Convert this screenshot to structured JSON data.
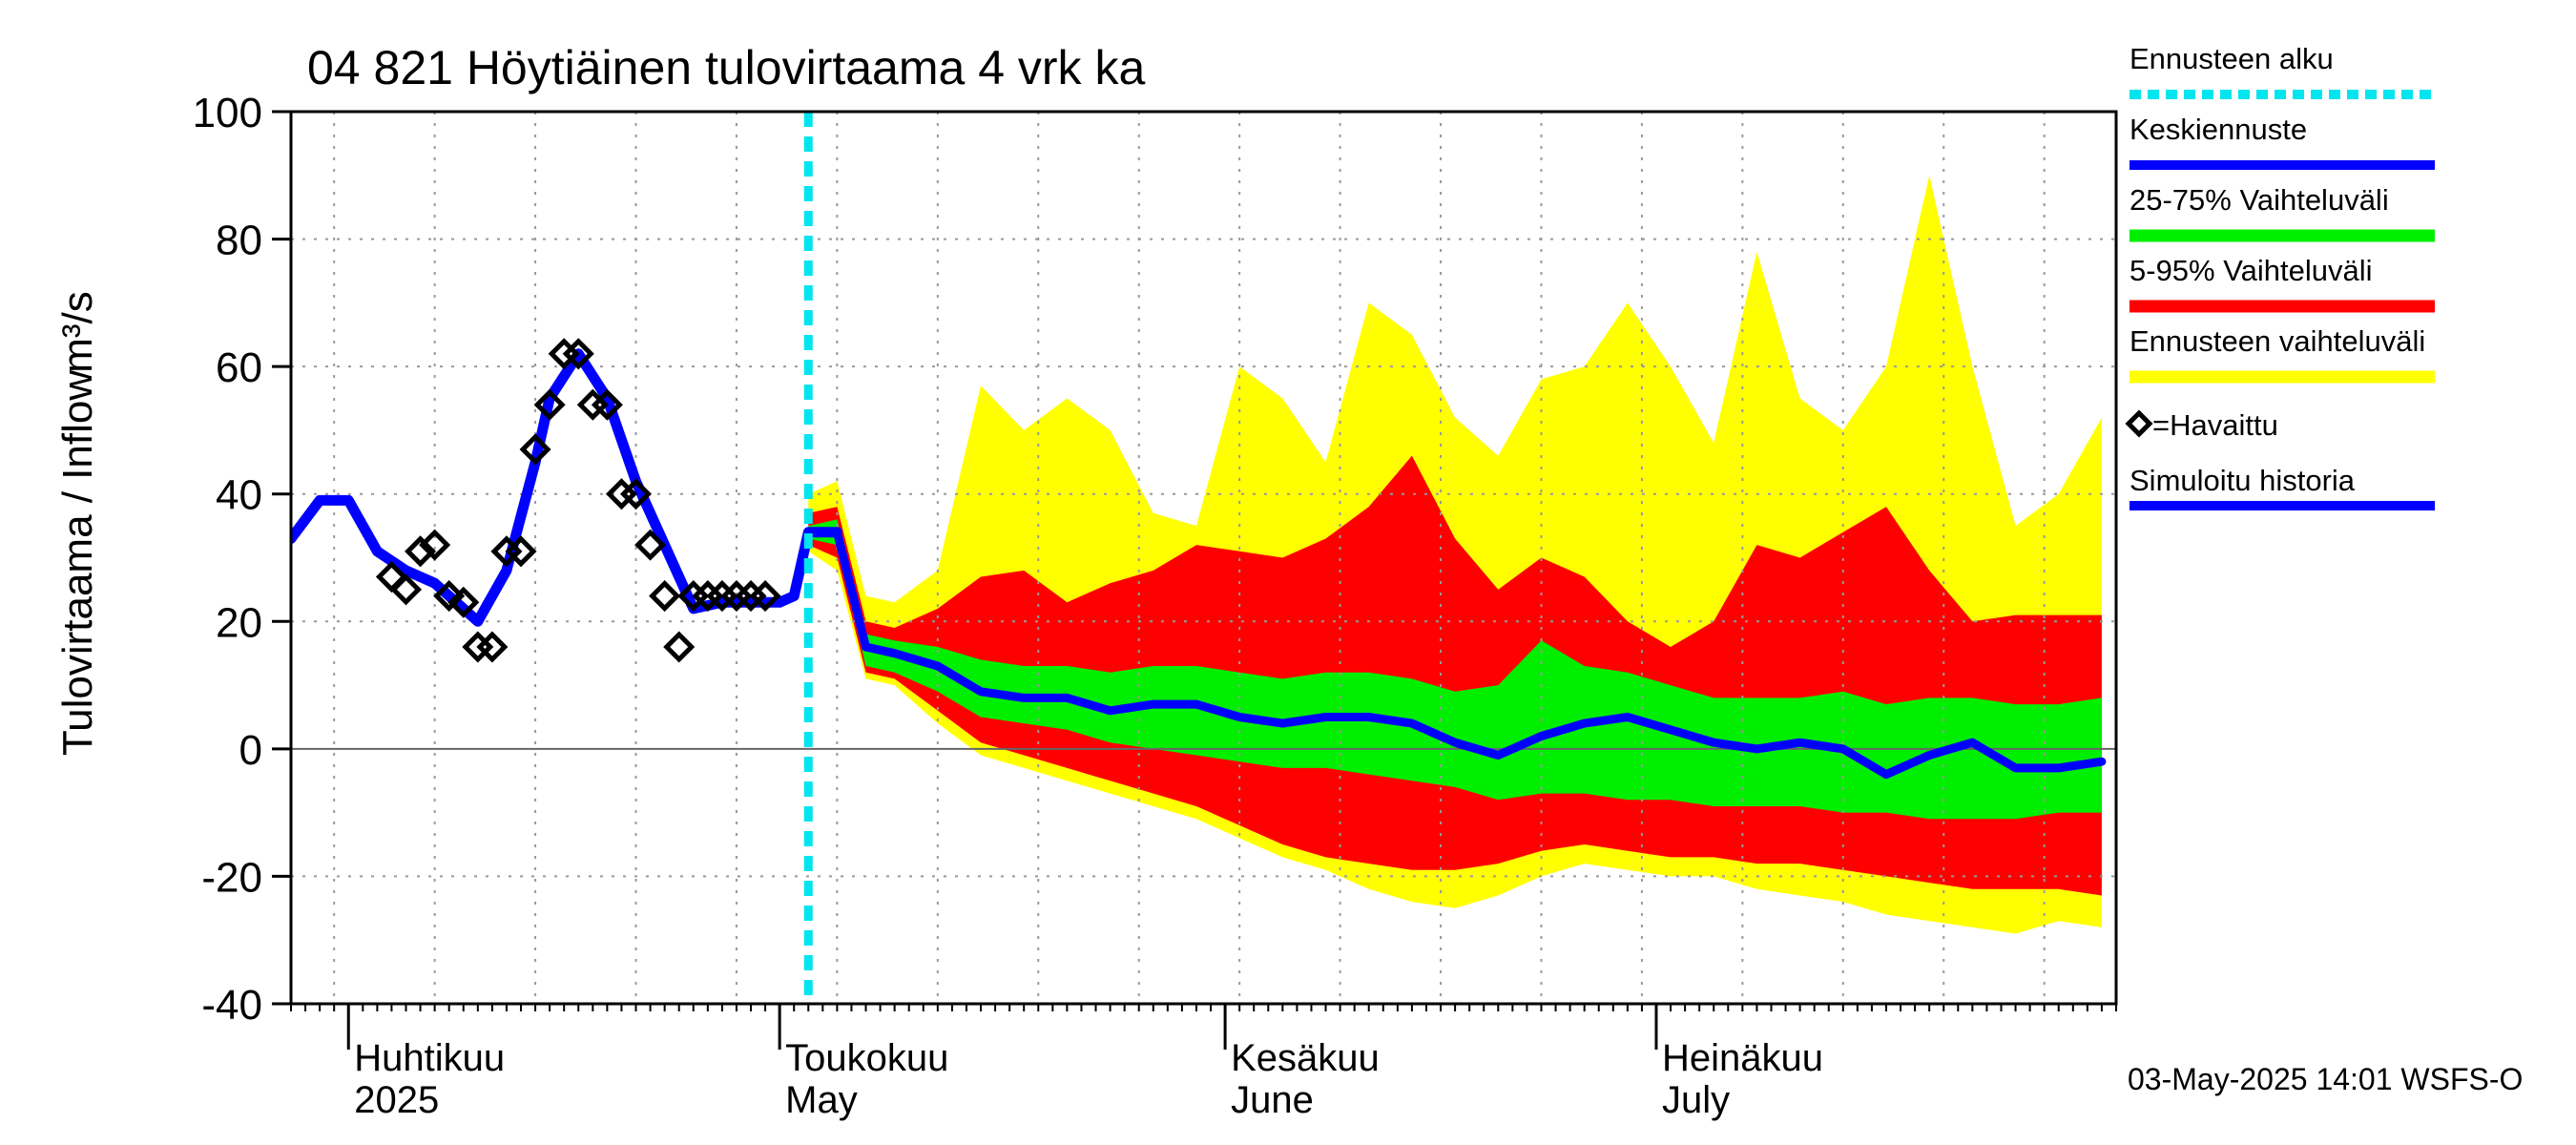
{
  "chart_data": {
    "type": "area",
    "title": "04 821 Höytiäinen tulovirtaama 4 vrk ka",
    "ylabel": "Tulovirtaama / Inflow",
    "yunit": "m³/s",
    "ylim": [
      -40,
      100
    ],
    "yticks": [
      -40,
      -20,
      0,
      20,
      40,
      60,
      80,
      100
    ],
    "xlim": [
      "2025-03-28",
      "2025-08-02"
    ],
    "forecast_start": "2025-05-03",
    "grid": true,
    "months": [
      {
        "fi": "Huhtikuu",
        "en": "2025",
        "date": "2025-04-01"
      },
      {
        "fi": "Toukokuu",
        "en": "May",
        "date": "2025-05-01"
      },
      {
        "fi": "Kesäkuu",
        "en": "June",
        "date": "2025-06-01"
      },
      {
        "fi": "Heinäkuu",
        "en": "July",
        "date": "2025-07-01"
      }
    ],
    "legend": [
      {
        "label": "Ennusteen alku",
        "color": "#00e5ee",
        "style": "dotted"
      },
      {
        "label": "Keskiennuste",
        "color": "#0000ff",
        "style": "line"
      },
      {
        "label": "25-75% Vaihteluväli",
        "color": "#00ee00",
        "style": "band"
      },
      {
        "label": "5-95% Vaihteluväli",
        "color": "#ff0000",
        "style": "band"
      },
      {
        "label": "Ennusteen vaihteluväli",
        "color": "#ffff00",
        "style": "band"
      },
      {
        "label": "=Havaittu",
        "color": "#000000",
        "style": "marker"
      },
      {
        "label": "Simuloitu historia",
        "color": "#0000ff",
        "style": "line"
      }
    ],
    "simulated_history": {
      "x": [
        "2025-03-28",
        "2025-03-30",
        "2025-04-01",
        "2025-04-03",
        "2025-04-05",
        "2025-04-07",
        "2025-04-09",
        "2025-04-10",
        "2025-04-12",
        "2025-04-14",
        "2025-04-15",
        "2025-04-17",
        "2025-04-19",
        "2025-04-21",
        "2025-04-23",
        "2025-04-25",
        "2025-04-27",
        "2025-04-29",
        "2025-05-01",
        "2025-05-02",
        "2025-05-03",
        "2025-05-05"
      ],
      "y": [
        33,
        39,
        39,
        31,
        28,
        26,
        22,
        20,
        28,
        45,
        55,
        62,
        55,
        42,
        32,
        22,
        23,
        23,
        23,
        24,
        34,
        34
      ]
    },
    "observed": {
      "x": [
        "2025-04-04",
        "2025-04-05",
        "2025-04-06",
        "2025-04-07",
        "2025-04-08",
        "2025-04-09",
        "2025-04-10",
        "2025-04-11",
        "2025-04-12",
        "2025-04-13",
        "2025-04-14",
        "2025-04-15",
        "2025-04-16",
        "2025-04-17",
        "2025-04-18",
        "2025-04-19",
        "2025-04-20",
        "2025-04-21",
        "2025-04-22",
        "2025-04-23",
        "2025-04-24",
        "2025-04-25",
        "2025-04-26",
        "2025-04-27",
        "2025-04-28",
        "2025-04-29",
        "2025-04-30"
      ],
      "y": [
        27,
        25,
        31,
        32,
        24,
        23,
        16,
        16,
        31,
        31,
        47,
        54,
        62,
        62,
        54,
        54,
        40,
        40,
        32,
        24,
        16,
        24,
        24,
        24,
        24,
        24,
        24
      ]
    },
    "forecast": {
      "x": [
        "2025-05-03",
        "2025-05-05",
        "2025-05-07",
        "2025-05-09",
        "2025-05-12",
        "2025-05-15",
        "2025-05-18",
        "2025-05-21",
        "2025-05-24",
        "2025-05-27",
        "2025-05-30",
        "2025-06-02",
        "2025-06-05",
        "2025-06-08",
        "2025-06-11",
        "2025-06-14",
        "2025-06-17",
        "2025-06-20",
        "2025-06-23",
        "2025-06-26",
        "2025-06-29",
        "2025-07-02",
        "2025-07-05",
        "2025-07-08",
        "2025-07-11",
        "2025-07-14",
        "2025-07-17",
        "2025-07-20",
        "2025-07-23",
        "2025-07-26",
        "2025-07-29",
        "2025-08-01"
      ],
      "median": [
        34,
        34,
        16,
        15,
        13,
        9,
        8,
        8,
        6,
        7,
        7,
        5,
        4,
        5,
        5,
        4,
        1,
        -1,
        2,
        4,
        5,
        3,
        1,
        0,
        1,
        0,
        -4,
        -1,
        1,
        -3,
        -3,
        -2
      ],
      "p25": [
        33,
        32,
        13,
        12,
        9,
        5,
        4,
        3,
        1,
        0,
        -1,
        -2,
        -3,
        -3,
        -4,
        -5,
        -6,
        -8,
        -7,
        -7,
        -8,
        -8,
        -9,
        -9,
        -9,
        -10,
        -10,
        -11,
        -11,
        -11,
        -10,
        -10
      ],
      "p75": [
        35,
        36,
        18,
        17,
        16,
        14,
        13,
        13,
        12,
        13,
        13,
        12,
        11,
        12,
        12,
        11,
        9,
        10,
        17,
        13,
        12,
        10,
        8,
        8,
        8,
        9,
        7,
        8,
        8,
        7,
        7,
        8
      ],
      "p05": [
        32,
        30,
        12,
        11,
        6,
        1,
        -1,
        -3,
        -5,
        -7,
        -9,
        -12,
        -15,
        -17,
        -18,
        -19,
        -19,
        -18,
        -16,
        -15,
        -16,
        -17,
        -17,
        -18,
        -18,
        -19,
        -20,
        -21,
        -22,
        -22,
        -22,
        -23
      ],
      "p95": [
        37,
        38,
        20,
        19,
        22,
        27,
        28,
        23,
        26,
        28,
        32,
        31,
        30,
        33,
        38,
        46,
        33,
        25,
        30,
        27,
        20,
        16,
        20,
        32,
        30,
        34,
        38,
        28,
        20,
        21,
        21,
        21
      ],
      "min": [
        31,
        28,
        11,
        10,
        4,
        -1,
        -3,
        -5,
        -7,
        -9,
        -11,
        -14,
        -17,
        -19,
        -22,
        -24,
        -25,
        -23,
        -20,
        -18,
        -19,
        -20,
        -20,
        -22,
        -23,
        -24,
        -26,
        -27,
        -28,
        -29,
        -27,
        -28
      ],
      "max": [
        40,
        42,
        24,
        23,
        28,
        57,
        50,
        55,
        50,
        37,
        35,
        60,
        55,
        45,
        70,
        65,
        52,
        46,
        58,
        60,
        70,
        60,
        48,
        78,
        55,
        50,
        60,
        90,
        60,
        35,
        40,
        52
      ]
    }
  },
  "footer": "03-May-2025 14:01 WSFS-O",
  "colors": {
    "forecast_range": "#ffff00",
    "band_5_95": "#ff0000",
    "band_25_75": "#00ee00",
    "median": "#0000ff",
    "history": "#0000ff",
    "forecast_start": "#00e5ee",
    "observed": "#000000"
  }
}
